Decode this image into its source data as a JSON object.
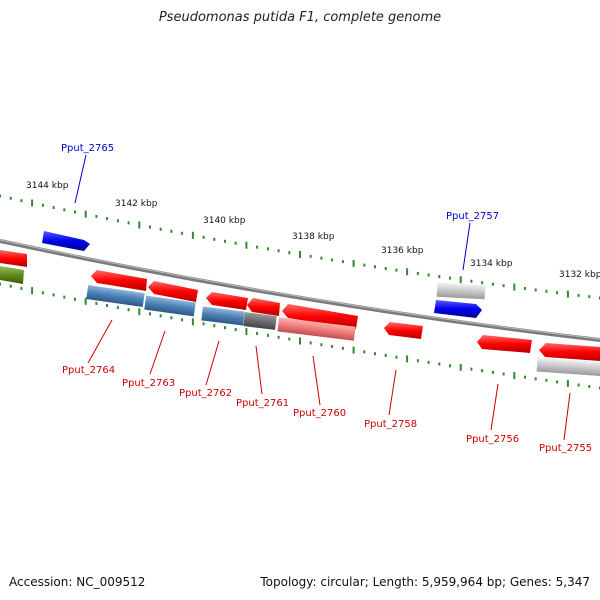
{
  "title": "Pseudomonas putida F1, complete genome",
  "footer": {
    "accession": "Accession: NC_009512",
    "topology": "Topology: circular; Length: 5,959,964 bp; Genes: 5,347"
  },
  "scale_labels": [
    "3144 kbp",
    "3142 kbp",
    "3140 kbp",
    "3138 kbp",
    "3136 kbp",
    "3134 kbp",
    "3132 kbp"
  ],
  "gene_labels": {
    "forward": [
      "Pput_2765",
      "Pput_2757"
    ],
    "reverse": [
      "Pput_2764",
      "Pput_2763",
      "Pput_2762",
      "Pput_2761",
      "Pput_2760",
      "Pput_2758",
      "Pput_2756",
      "Pput_2755"
    ]
  },
  "colors": {
    "forward_label": "#0000cc",
    "reverse_label": "#cc0000",
    "tick": "#2e8b2e",
    "backbone": "#7a7a7a"
  }
}
